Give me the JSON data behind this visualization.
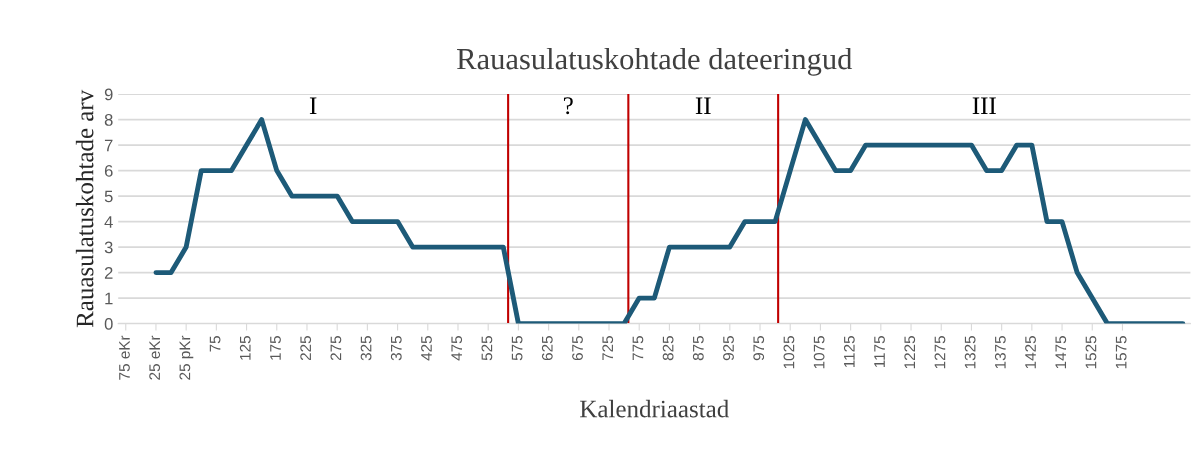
{
  "chart_data": {
    "type": "line",
    "title": "Rauasulatuskohtade dateeringud",
    "xlabel": "Kalendriaastad",
    "ylabel": "Rauasulatuskohtade arv",
    "x": [
      -25,
      0,
      25,
      50,
      75,
      100,
      125,
      150,
      175,
      200,
      225,
      250,
      275,
      300,
      325,
      350,
      375,
      400,
      425,
      450,
      475,
      500,
      525,
      550,
      575,
      600,
      625,
      650,
      675,
      700,
      725,
      750,
      775,
      800,
      825,
      850,
      875,
      900,
      925,
      950,
      975,
      1000,
      1025,
      1050,
      1075,
      1100,
      1125,
      1150,
      1175,
      1200,
      1225,
      1250,
      1275,
      1300,
      1325,
      1350,
      1375,
      1400,
      1425,
      1450,
      1475,
      1500,
      1525,
      1550,
      1575,
      1600,
      1625,
      1650,
      1675
    ],
    "series": [
      {
        "color": "#1d5a78",
        "values": [
          2,
          2,
          3,
          6,
          6,
          6,
          7,
          8,
          6,
          5,
          5,
          5,
          5,
          4,
          4,
          4,
          4,
          3,
          3,
          3,
          3,
          3,
          3,
          3,
          0,
          0,
          0,
          0,
          0,
          0,
          0,
          0,
          1,
          1,
          3,
          3,
          3,
          3,
          3,
          4,
          4,
          4,
          6,
          8,
          7,
          6,
          6,
          7,
          7,
          7,
          7,
          7,
          7,
          7,
          7,
          6,
          6,
          7,
          7,
          4,
          4,
          2,
          1,
          0,
          0,
          0,
          0,
          0,
          0
        ]
      }
    ],
    "xlim": [
      -87.5,
      1687.5
    ],
    "xticks": [
      {
        "value": -75,
        "label": "75 eKr"
      },
      {
        "value": -25,
        "label": "25 eKr"
      },
      {
        "value": 25,
        "label": "25 pKr"
      },
      75,
      125,
      175,
      225,
      275,
      325,
      375,
      425,
      475,
      525,
      575,
      625,
      675,
      725,
      775,
      825,
      875,
      925,
      975,
      1025,
      1075,
      1125,
      1175,
      1225,
      1275,
      1325,
      1375,
      1425,
      1475,
      1525,
      1575
    ],
    "ylim": [
      0,
      9
    ],
    "yticks": [
      0,
      1,
      2,
      3,
      4,
      5,
      6,
      7,
      8,
      9
    ],
    "grid": "y",
    "legend": false,
    "marker": "none",
    "line_style": "solid",
    "ref_lines": [
      {
        "axis": "x",
        "value": 558,
        "color": "#c00000"
      },
      {
        "axis": "x",
        "value": 757,
        "color": "#c00000"
      },
      {
        "axis": "x",
        "value": 1005,
        "color": "#c00000"
      }
    ],
    "annotations": [
      "I",
      "?",
      "II",
      "III"
    ]
  }
}
